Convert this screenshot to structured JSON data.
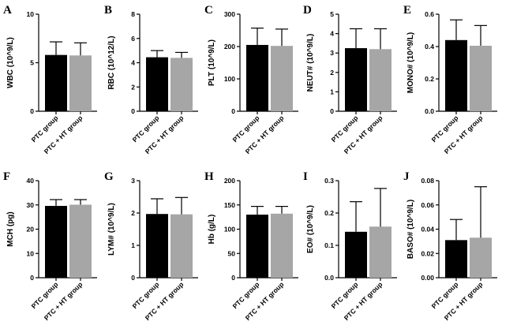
{
  "colors": {
    "ptc": "#000000",
    "ptc_ht": "#a6a6a6",
    "axis": "#000000"
  },
  "chart_data": [
    {
      "type": "bar",
      "panel": "A",
      "ylabel": "WBC (10^9/L)",
      "ylim": [
        0,
        10
      ],
      "yticks": [
        "0",
        "5",
        "10"
      ],
      "categories": [
        "PTC group",
        "PTC + HT group"
      ],
      "values": [
        5.8,
        5.75
      ],
      "error": [
        1.35,
        1.3
      ]
    },
    {
      "type": "bar",
      "panel": "B",
      "ylabel": "RBC (10^12/L)",
      "ylim": [
        0,
        8
      ],
      "yticks": [
        "0",
        "2",
        "4",
        "6",
        "8"
      ],
      "categories": [
        "PTC group",
        "PTC + HT group"
      ],
      "values": [
        4.45,
        4.4
      ],
      "error": [
        0.55,
        0.45
      ]
    },
    {
      "type": "bar",
      "panel": "C",
      "ylabel": "PLT (10^9/L)",
      "ylim": [
        0,
        300
      ],
      "yticks": [
        "0",
        "100",
        "200",
        "300"
      ],
      "categories": [
        "PTC group",
        "PTC + HT group"
      ],
      "values": [
        205,
        202
      ],
      "error": [
        52,
        52
      ]
    },
    {
      "type": "bar",
      "panel": "D",
      "ylabel": "NEUT# (10^9/L)",
      "ylim": [
        0,
        5
      ],
      "yticks": [
        "0",
        "1",
        "2",
        "3",
        "4",
        "5"
      ],
      "categories": [
        "PTC group",
        "PTC + HT group"
      ],
      "values": [
        3.25,
        3.2
      ],
      "error": [
        1.0,
        1.05
      ]
    },
    {
      "type": "bar",
      "panel": "E",
      "ylabel": "MONO# (10^9/L)",
      "ylim": [
        0,
        0.6
      ],
      "yticks": [
        "0.0",
        "0.2",
        "0.4",
        "0.6"
      ],
      "categories": [
        "PTC group",
        "PTC + HT group"
      ],
      "values": [
        0.44,
        0.405
      ],
      "error": [
        0.125,
        0.125
      ]
    },
    {
      "type": "bar",
      "panel": "F",
      "ylabel": "MCH (pg)",
      "ylim": [
        0,
        40
      ],
      "yticks": [
        "0",
        "10",
        "20",
        "30",
        "40"
      ],
      "categories": [
        "PTC group",
        "PTC + HT group"
      ],
      "values": [
        29.6,
        30.1
      ],
      "error": [
        2.6,
        2.1
      ]
    },
    {
      "type": "bar",
      "panel": "G",
      "ylabel": "LYM# (10^9/L)",
      "ylim": [
        0,
        3
      ],
      "yticks": [
        "0",
        "1",
        "2",
        "3"
      ],
      "categories": [
        "PTC group",
        "PTC + HT group"
      ],
      "values": [
        1.97,
        1.96
      ],
      "error": [
        0.47,
        0.52
      ]
    },
    {
      "type": "bar",
      "panel": "H",
      "ylabel": "Hb (g/L)",
      "ylim": [
        0,
        200
      ],
      "yticks": [
        "0",
        "50",
        "100",
        "150",
        "200"
      ],
      "categories": [
        "PTC group",
        "PTC + HT group"
      ],
      "values": [
        130,
        132
      ],
      "error": [
        17,
        15
      ]
    },
    {
      "type": "bar",
      "panel": "I",
      "ylabel": "EO# (10^9/L)",
      "ylim": [
        0,
        0.3
      ],
      "yticks": [
        "0.0",
        "0.1",
        "0.2",
        "0.3"
      ],
      "categories": [
        "PTC group",
        "PTC + HT group"
      ],
      "values": [
        0.142,
        0.158
      ],
      "error": [
        0.093,
        0.118
      ]
    },
    {
      "type": "bar",
      "panel": "J",
      "ylabel": "BASO# (10^9/L)",
      "ylim": [
        0,
        0.08
      ],
      "yticks": [
        "0.00",
        "0.02",
        "0.04",
        "0.06",
        "0.08"
      ],
      "categories": [
        "PTC group",
        "PTC + HT group"
      ],
      "values": [
        0.031,
        0.033
      ],
      "error": [
        0.017,
        0.042
      ]
    }
  ]
}
